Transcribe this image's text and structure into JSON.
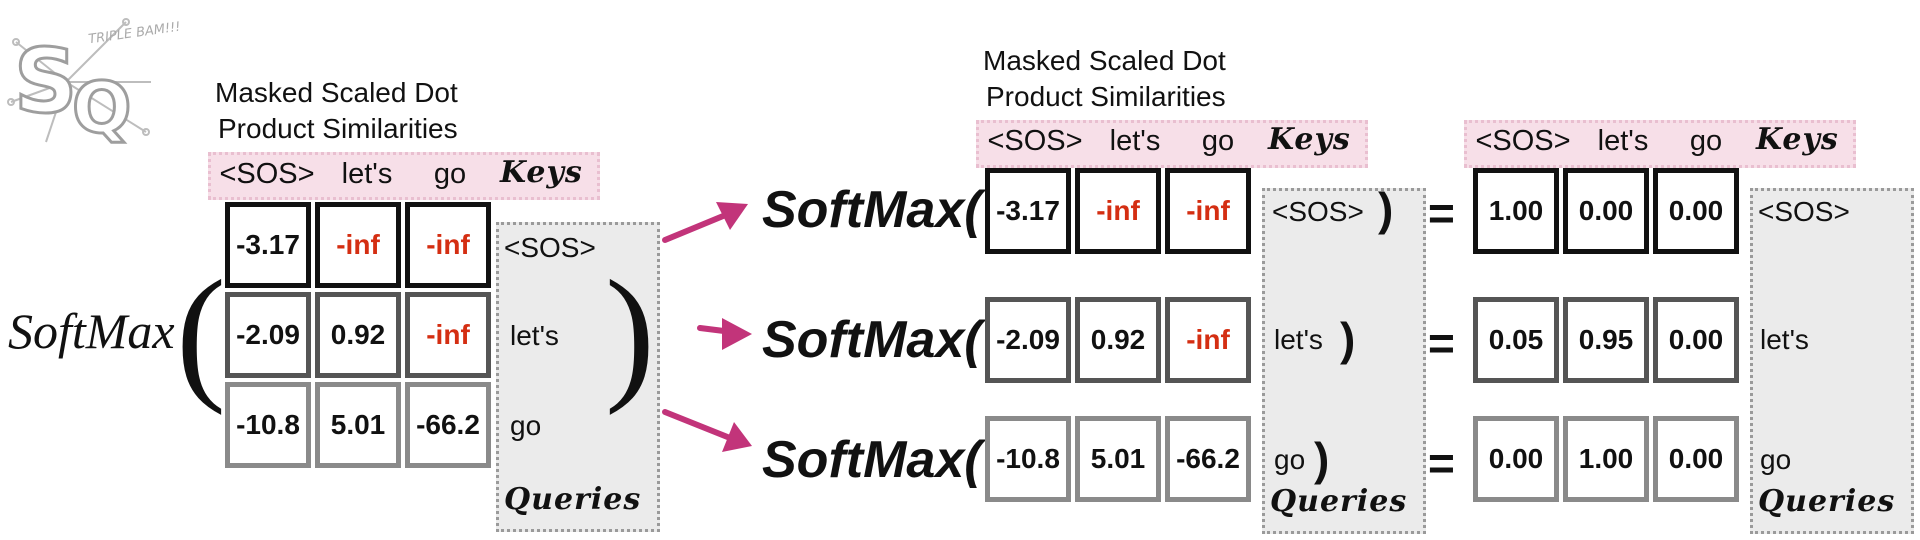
{
  "caption_left": [
    "Masked Scaled Dot",
    "Product Similarities"
  ],
  "caption_right": [
    "Masked Scaled Dot",
    "Product Similarities"
  ],
  "key_tokens": [
    "<SOS>",
    "let's",
    "go"
  ],
  "keys_label": "Keys",
  "queries_label": "Queries",
  "query_tokens": [
    "<SOS>",
    "let's",
    "go"
  ],
  "softmax_label": "SoftMax",
  "softmax_call": "SoftMax(",
  "close_paren": ")",
  "equals": "=",
  "logo": {
    "letters": "SQ",
    "tagline": "TRIPLE BAM!!!"
  },
  "similarities": [
    [
      "-3.17",
      "-inf",
      "-inf"
    ],
    [
      "-2.09",
      "0.92",
      "-inf"
    ],
    [
      "-10.8",
      "5.01",
      "-66.2"
    ]
  ],
  "softmax_outputs": [
    [
      "1.00",
      "0.00",
      "0.00"
    ],
    [
      "0.05",
      "0.95",
      "0.00"
    ],
    [
      "0.00",
      "1.00",
      "0.00"
    ]
  ],
  "colors": {
    "negative_inf": "#d42e12",
    "arrow": "#c2347a",
    "keys_band": "#f7dfe8",
    "queries_panel": "#ebebeb"
  }
}
